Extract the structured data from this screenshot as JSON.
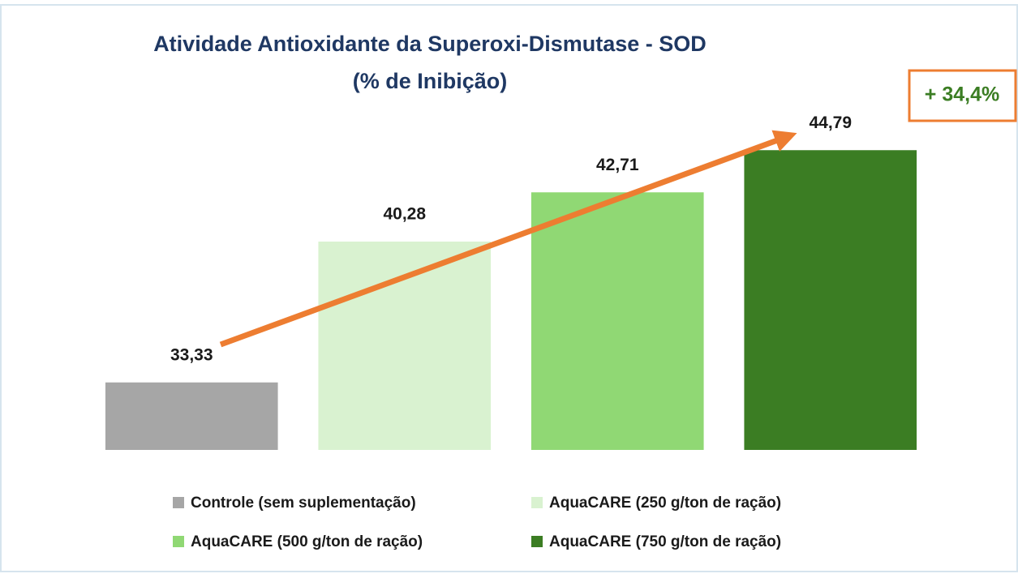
{
  "chart_data": {
    "type": "bar",
    "title": "Atividade Antioxidante da Superoxi-Dismutase - SOD",
    "subtitle": "(% de Inibição)",
    "categories": [
      "Controle (sem suplementação)",
      "AquaCARE (250 g/ton de ração)",
      "AquaCARE (500 g/ton de ração)",
      "AquaCARE (750 g/ton de ração)"
    ],
    "values": [
      33.33,
      40.28,
      42.71,
      44.79
    ],
    "value_labels": [
      "33,33",
      "40,28",
      "42,71",
      "44,79"
    ],
    "colors": [
      "#a6a6a6",
      "#d9f2d0",
      "#90d874",
      "#3b7d23"
    ],
    "ylim": [
      30,
      45
    ],
    "annotation": "+ 34,4%"
  }
}
